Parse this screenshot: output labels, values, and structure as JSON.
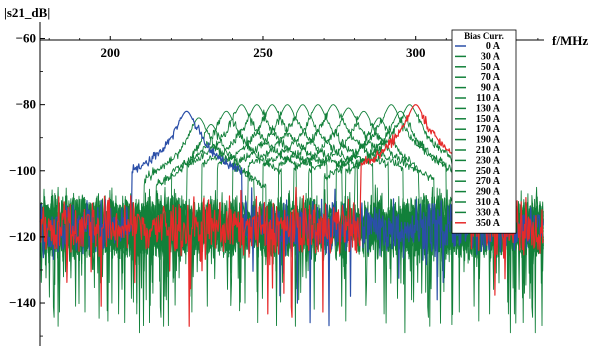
{
  "chart_data": {
    "type": "line",
    "title": "",
    "ylabel": "|s21_dB|",
    "xlabel": "f/MHz",
    "xlim": [
      177,
      342
    ],
    "ylim": [
      -153,
      -55
    ],
    "x_ticks": [
      200,
      250,
      300
    ],
    "y_ticks": [
      -60,
      -80,
      -100,
      -120,
      -140
    ],
    "grid": false,
    "legend": {
      "title": "Bias Curr.",
      "placement": "top-right"
    },
    "colors": {
      "first": "#2b4fa8",
      "middle": "#12803a",
      "last": "#e62a2a"
    },
    "series": [
      {
        "name": "0 A",
        "peak_freq_mhz": 225,
        "peak_db": -82
      },
      {
        "name": "30 A",
        "peak_freq_mhz": 229,
        "peak_db": -84
      },
      {
        "name": "50 A",
        "peak_freq_mhz": 233,
        "peak_db": -86
      },
      {
        "name": "70 A",
        "peak_freq_mhz": 238,
        "peak_db": -82
      },
      {
        "name": "90 A",
        "peak_freq_mhz": 243,
        "peak_db": -80
      },
      {
        "name": "110 A",
        "peak_freq_mhz": 248,
        "peak_db": -80
      },
      {
        "name": "130 A",
        "peak_freq_mhz": 253,
        "peak_db": -80
      },
      {
        "name": "150 A",
        "peak_freq_mhz": 258,
        "peak_db": -80
      },
      {
        "name": "170 A",
        "peak_freq_mhz": 263,
        "peak_db": -80
      },
      {
        "name": "190 A",
        "peak_freq_mhz": 268,
        "peak_db": -80
      },
      {
        "name": "210 A",
        "peak_freq_mhz": 273,
        "peak_db": -80
      },
      {
        "name": "230 A",
        "peak_freq_mhz": 278,
        "peak_db": -81
      },
      {
        "name": "250 A",
        "peak_freq_mhz": 283,
        "peak_db": -82
      },
      {
        "name": "270 A",
        "peak_freq_mhz": 288,
        "peak_db": -84
      },
      {
        "name": "290 A",
        "peak_freq_mhz": 292,
        "peak_db": -80
      },
      {
        "name": "310 A",
        "peak_freq_mhz": 295,
        "peak_db": -82
      },
      {
        "name": "330 A",
        "peak_freq_mhz": 298,
        "peak_db": -80
      },
      {
        "name": "350 A",
        "peak_freq_mhz": 300,
        "peak_db": -80
      }
    ]
  }
}
